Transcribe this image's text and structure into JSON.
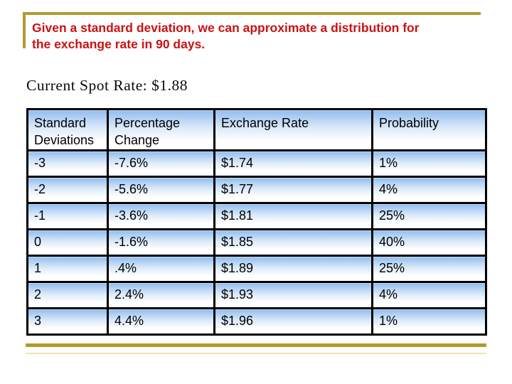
{
  "slide": {
    "title": {
      "line1": "Given a standard deviation, we can approximate a distribution for",
      "line2": "the exchange rate in 90 days."
    },
    "subtitle": "Current Spot Rate: $1.88"
  },
  "table": {
    "columns": [
      "Standard Deviations",
      "Percentage Change",
      "Exchange Rate",
      "Probability"
    ],
    "rows": [
      [
        "-3",
        "-7.6%",
        "$1.74",
        "1%"
      ],
      [
        "-2",
        "-5.6%",
        "$1.77",
        "4%"
      ],
      [
        "-1",
        "-3.6%",
        "$1.81",
        "25%"
      ],
      [
        "0",
        "-1.6%",
        "$1.85",
        "40%"
      ],
      [
        "1",
        ".4%",
        "$1.89",
        "25%"
      ],
      [
        "2",
        "2.4%",
        "$1.93",
        "4%"
      ],
      [
        "3",
        "4.4%",
        "$1.96",
        "1%"
      ]
    ]
  },
  "colors": {
    "title_red": "#CC1111",
    "accent_gold": "#B5992F",
    "pale_gold": "#EBE3B4",
    "cell_blue_top": "#92BDEF",
    "table_border": "#000000"
  }
}
